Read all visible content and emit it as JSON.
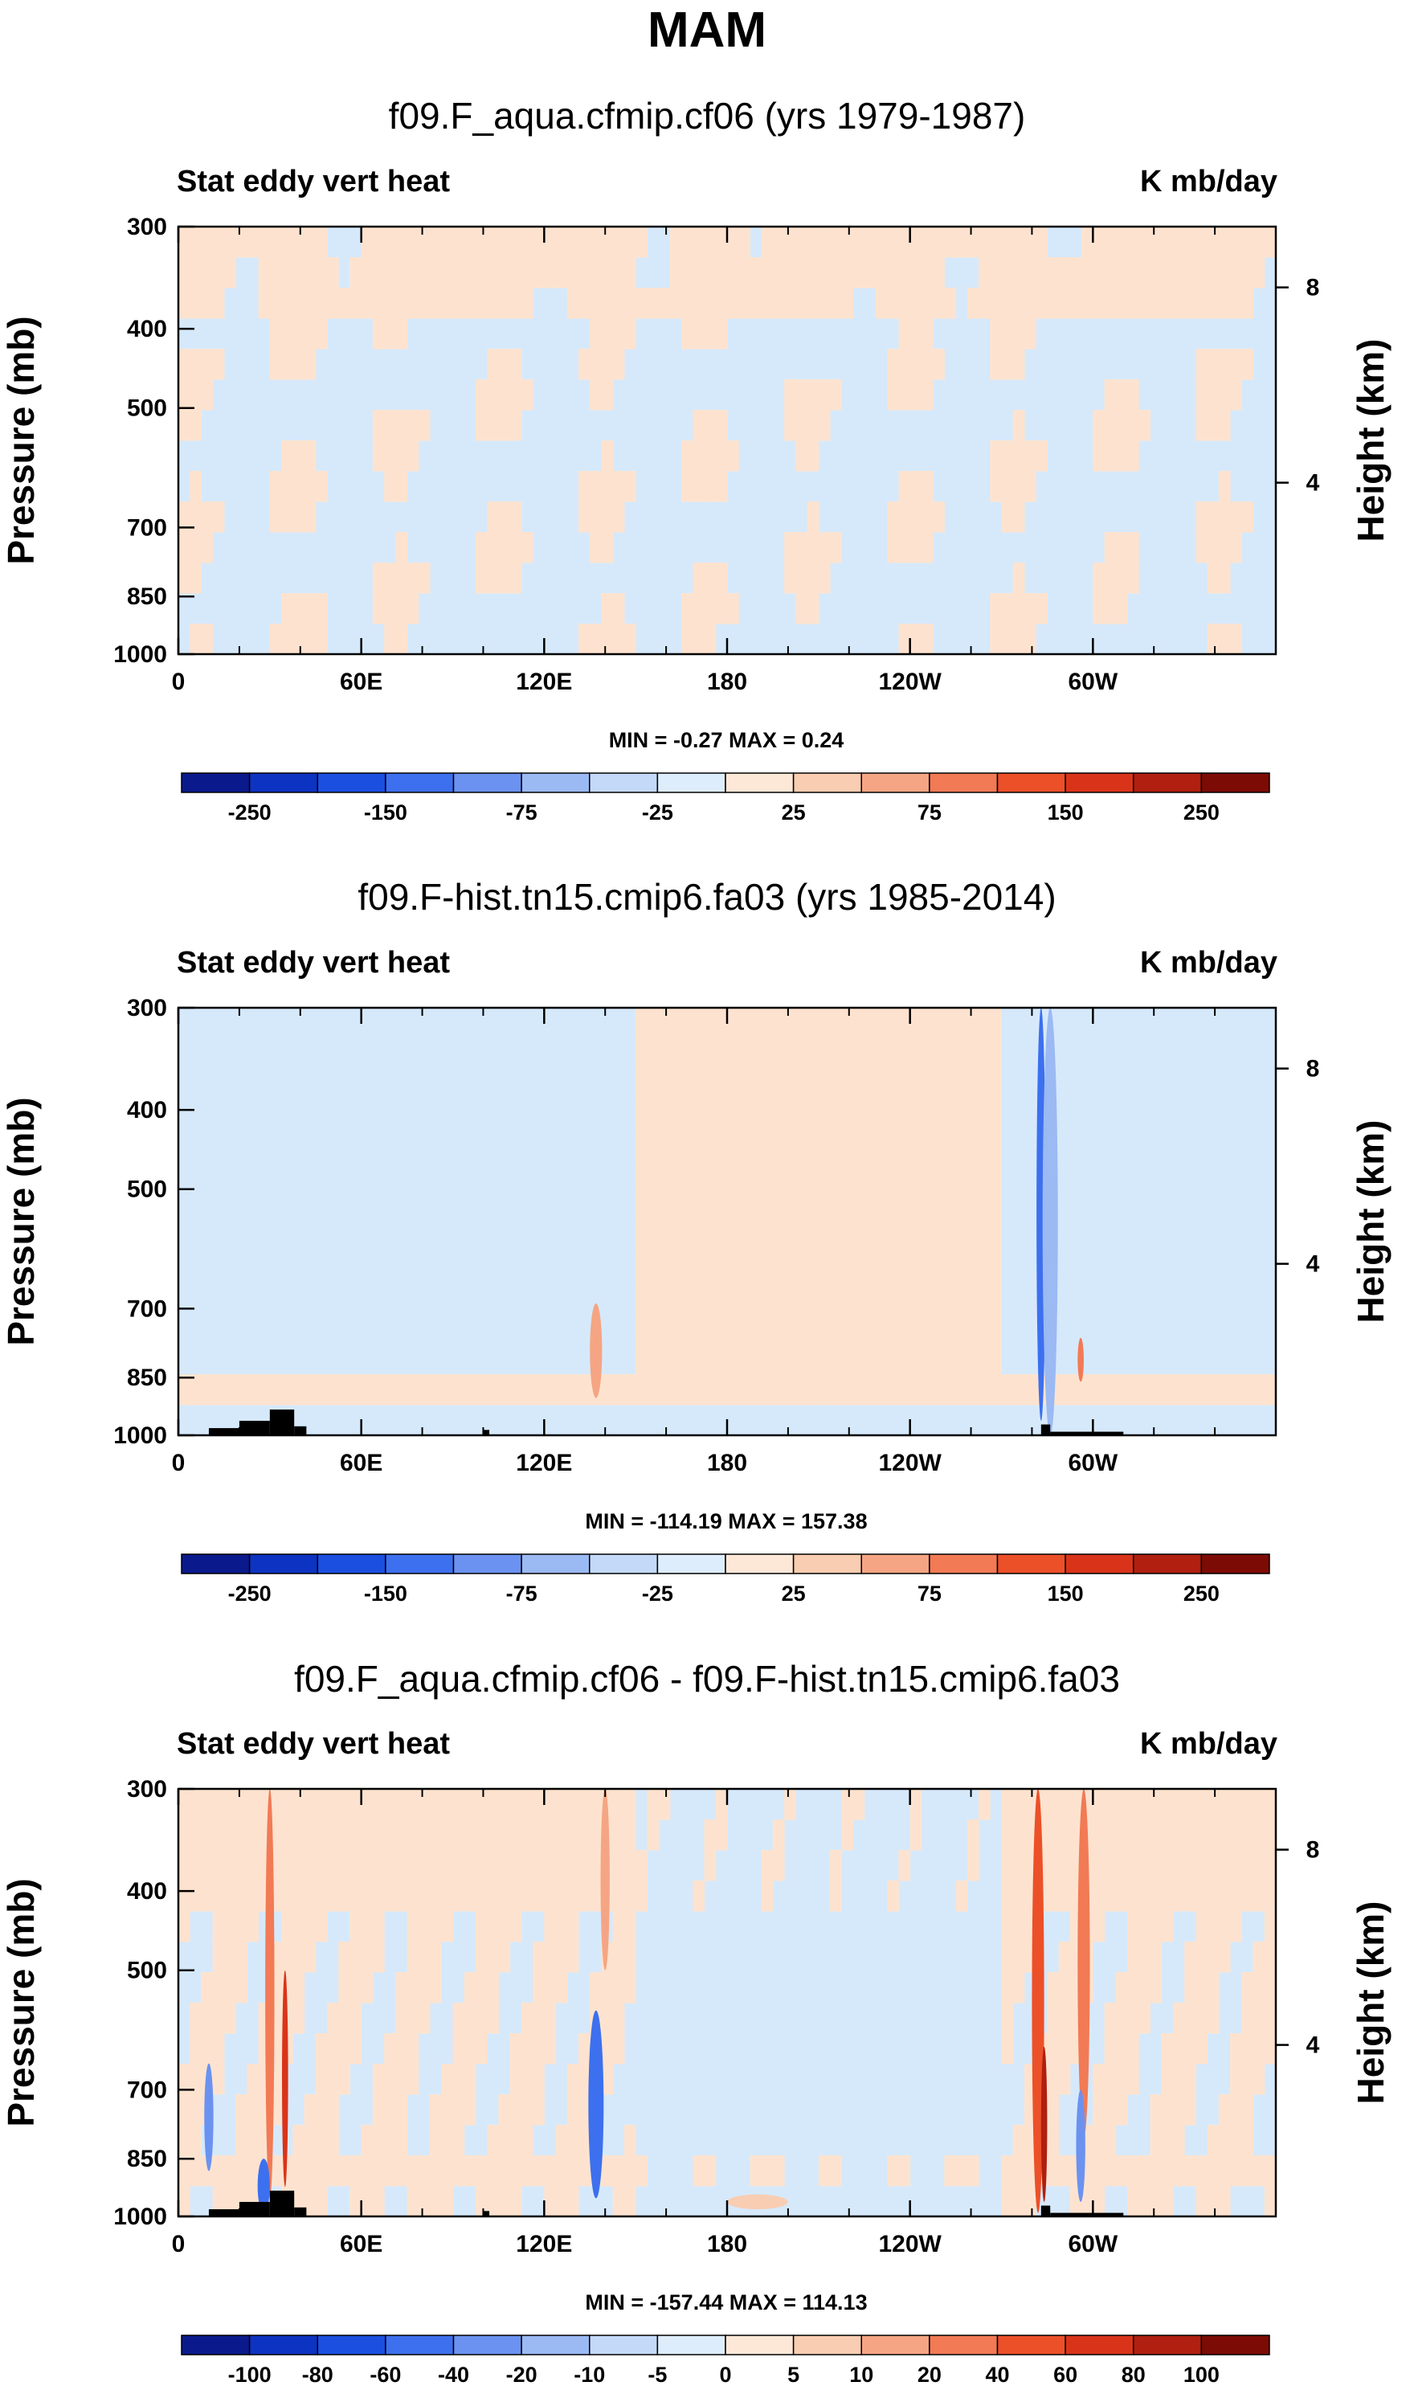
{
  "main_title": "MAM",
  "colors": {
    "neg_light": "#d6e9fb",
    "pos_light": "#fde3cf",
    "land": "#000000"
  },
  "chart_data": [
    {
      "type": "heatmap",
      "title": "f09.F_aqua.cfmip.cf06 (yrs 1979-1987)",
      "left_label": "Stat eddy vert heat",
      "right_label": "K mb/day",
      "ylabel": "Pressure (mb)",
      "ylabel_right": "Height (km)",
      "x_ticks": [
        "0",
        "60E",
        "120E",
        "180",
        "120W",
        "60W"
      ],
      "y_ticks": [
        "300",
        "400",
        "500",
        "700",
        "850",
        "1000"
      ],
      "y2_ticks": [
        "8",
        "4"
      ],
      "stats": "MIN =   -0.27  MAX =    0.24",
      "colorbar_labels": [
        "-250",
        "-150",
        "-75",
        "-25",
        "25",
        "75",
        "150",
        "250"
      ],
      "colorbar_colors": [
        "#0a1a8c",
        "#0d33c2",
        "#1a4fe0",
        "#3d70ee",
        "#6b92f0",
        "#9bb9f3",
        "#c4d9f8",
        "#deedfc",
        "#fde8d8",
        "#f9cdb1",
        "#f5a583",
        "#f27a55",
        "#ec5028",
        "#d9341a",
        "#b01f0f",
        "#7d0b05"
      ],
      "features": []
    },
    {
      "type": "heatmap",
      "title": "f09.F-hist.tn15.cmip6.fa03 (yrs 1985-2014)",
      "left_label": "Stat eddy vert heat",
      "right_label": "K mb/day",
      "ylabel": "Pressure (mb)",
      "ylabel_right": "Height (km)",
      "x_ticks": [
        "0",
        "60E",
        "120E",
        "180",
        "120W",
        "60W"
      ],
      "y_ticks": [
        "300",
        "400",
        "500",
        "700",
        "850",
        "1000"
      ],
      "y2_ticks": [
        "8",
        "4"
      ],
      "stats": "MIN = -114.19  MAX = 157.38",
      "colorbar_labels": [
        "-250",
        "-150",
        "-75",
        "-25",
        "25",
        "75",
        "150",
        "250"
      ],
      "colorbar_colors": [
        "#0a1a8c",
        "#0d33c2",
        "#1a4fe0",
        "#3d70ee",
        "#6b92f0",
        "#9bb9f3",
        "#c4d9f8",
        "#deedfc",
        "#fde8d8",
        "#f9cdb1",
        "#f5a583",
        "#f27a55",
        "#ec5028",
        "#d9341a",
        "#b01f0f",
        "#7d0b05"
      ],
      "features": [
        {
          "lon": 137,
          "color": "#f5a583",
          "top": 690,
          "bottom": 900,
          "width": 4
        },
        {
          "lon": 283,
          "color": "#3d70ee",
          "top": 300,
          "bottom": 960,
          "width": 3
        },
        {
          "lon": 286,
          "color": "#9bb9f3",
          "top": 300,
          "bottom": 1000,
          "width": 5
        },
        {
          "lon": 296,
          "color": "#f27a55",
          "top": 760,
          "bottom": 860,
          "width": 2
        }
      ]
    },
    {
      "type": "heatmap",
      "title": "f09.F_aqua.cfmip.cf06 - f09.F-hist.tn15.cmip6.fa03",
      "left_label": "Stat eddy vert heat",
      "right_label": "K mb/day",
      "ylabel": "Pressure (mb)",
      "ylabel_right": "Height (km)",
      "x_ticks": [
        "0",
        "60E",
        "120E",
        "180",
        "120W",
        "60W"
      ],
      "y_ticks": [
        "300",
        "400",
        "500",
        "700",
        "850",
        "1000"
      ],
      "y2_ticks": [
        "8",
        "4"
      ],
      "stats": "MIN = -157.44  MAX = 114.13",
      "colorbar_labels": [
        "-100",
        "-80",
        "-60",
        "-40",
        "-20",
        "-10",
        "-5",
        "0",
        "5",
        "10",
        "20",
        "40",
        "60",
        "80",
        "100"
      ],
      "colorbar_colors": [
        "#0a1a8c",
        "#0d33c2",
        "#1a4fe0",
        "#3d70ee",
        "#6b92f0",
        "#9bb9f3",
        "#c4d9f8",
        "#deedfc",
        "#fde8d8",
        "#f9cdb1",
        "#f5a583",
        "#f27a55",
        "#ec5028",
        "#d9341a",
        "#b01f0f",
        "#7d0b05"
      ],
      "features": [
        {
          "lon": 30,
          "color": "#f27a55",
          "top": 300,
          "bottom": 950,
          "width": 3
        },
        {
          "lon": 35,
          "color": "#d9341a",
          "top": 500,
          "bottom": 920,
          "width": 2
        },
        {
          "lon": 10,
          "color": "#6b92f0",
          "top": 650,
          "bottom": 880,
          "width": 3
        },
        {
          "lon": 28,
          "color": "#3d70ee",
          "top": 850,
          "bottom": 990,
          "width": 4
        },
        {
          "lon": 137,
          "color": "#3d70ee",
          "top": 560,
          "bottom": 950,
          "width": 5
        },
        {
          "lon": 140,
          "color": "#f5a583",
          "top": 300,
          "bottom": 500,
          "width": 3
        },
        {
          "lon": 282,
          "color": "#ec5028",
          "top": 300,
          "bottom": 990,
          "width": 4
        },
        {
          "lon": 284,
          "color": "#b01f0f",
          "top": 620,
          "bottom": 960,
          "width": 2
        },
        {
          "lon": 297,
          "color": "#f27a55",
          "top": 300,
          "bottom": 800,
          "width": 4
        },
        {
          "lon": 296,
          "color": "#6b92f0",
          "top": 700,
          "bottom": 960,
          "width": 3
        },
        {
          "lon": 190,
          "color": "#f9cdb1",
          "top": 940,
          "bottom": 980,
          "width": 20
        }
      ]
    }
  ]
}
